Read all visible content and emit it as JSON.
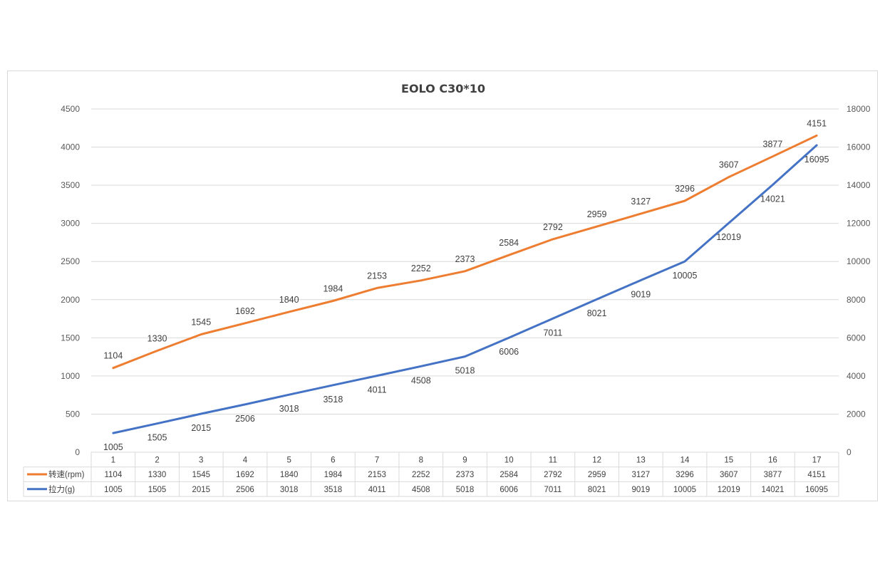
{
  "chart_data": {
    "type": "line",
    "title": "EOLO C30*10",
    "categories": [
      "1",
      "2",
      "3",
      "4",
      "5",
      "6",
      "7",
      "8",
      "9",
      "10",
      "11",
      "12",
      "13",
      "14",
      "15",
      "16",
      "17"
    ],
    "series": [
      {
        "name": "转速(rpm)",
        "axis": "left",
        "color": "#ED7D31",
        "values": [
          1104,
          1330,
          1545,
          1692,
          1840,
          1984,
          2153,
          2252,
          2373,
          2584,
          2792,
          2959,
          3127,
          3296,
          3607,
          3877,
          4151
        ]
      },
      {
        "name": "拉力(g)",
        "axis": "right",
        "color": "#4472C4",
        "values": [
          1005,
          1505,
          2015,
          2506,
          3018,
          3518,
          4011,
          4508,
          5018,
          6006,
          7011,
          8021,
          9019,
          10005,
          12019,
          14021,
          16095
        ]
      }
    ],
    "y_left": {
      "ylim": [
        0,
        4500
      ],
      "ticks": [
        "0",
        "500",
        "1000",
        "1500",
        "2000",
        "2500",
        "3000",
        "3500",
        "4000",
        "4500"
      ]
    },
    "y_right": {
      "ylim": [
        0,
        18000
      ],
      "ticks": [
        "0",
        "2000",
        "4000",
        "6000",
        "8000",
        "10000",
        "12000",
        "14000",
        "16000",
        "18000"
      ]
    },
    "grid": true,
    "data_table": true,
    "xlabel": "",
    "ylabel": ""
  }
}
